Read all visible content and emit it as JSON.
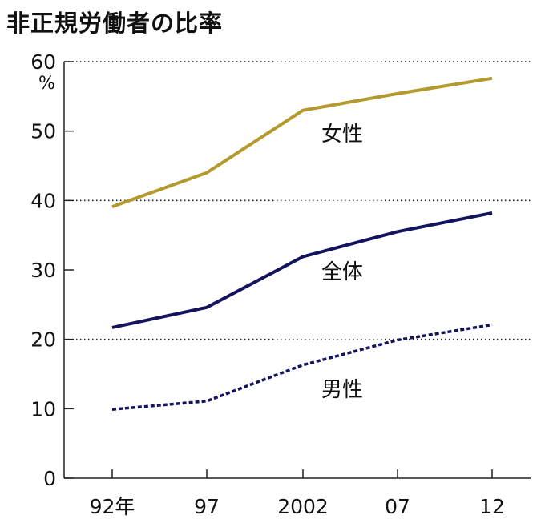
{
  "chart_data": {
    "type": "line",
    "title": "非正規労働者の比率",
    "unit": "%",
    "categories": [
      "92年",
      "97",
      "2002",
      "07",
      "12"
    ],
    "y_ticks": [
      "0",
      "10",
      "20",
      "30",
      "40",
      "50",
      "60"
    ],
    "ylim": [
      0,
      60
    ],
    "grid": "dotted lines at 20, 40, 60",
    "series": [
      {
        "name": "女性",
        "values": [
          39.1,
          44.0,
          53.0,
          55.4,
          57.6
        ],
        "color": "#b49a2e",
        "dash": "solid"
      },
      {
        "name": "全体",
        "values": [
          21.7,
          24.6,
          31.9,
          35.5,
          38.2
        ],
        "color": "#14145e",
        "dash": "solid"
      },
      {
        "name": "男性",
        "values": [
          9.9,
          11.1,
          16.3,
          19.9,
          22.1
        ],
        "color": "#14145e",
        "dash": "dashed"
      }
    ]
  }
}
